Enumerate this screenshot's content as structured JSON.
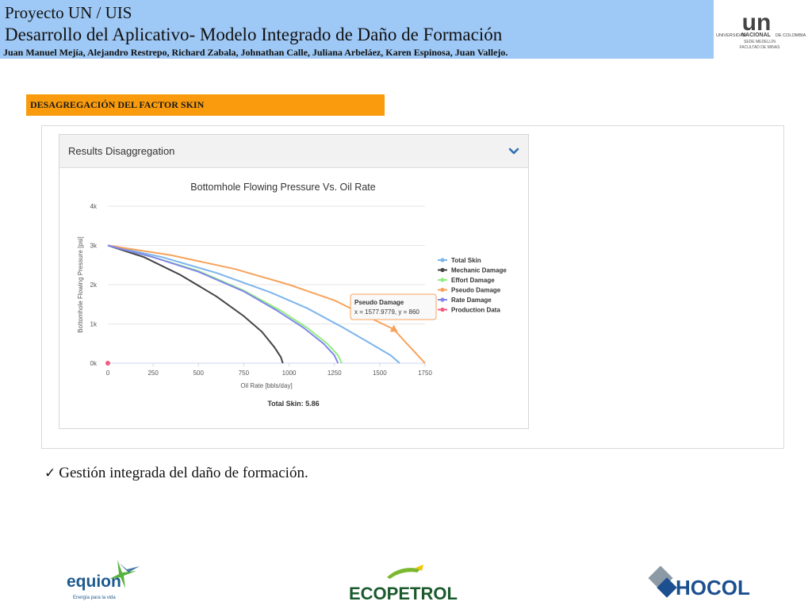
{
  "header": {
    "line1": "Proyecto UN / UIS",
    "line2": "Desarrollo  del Aplicativo- Modelo Integrado de Daño de Formación",
    "authors": "Juan Manuel Mejía,  Alejandro Restrepo, Richard Zabala, Johnathan Calle, Juliana Arbeláez, Karen Espinosa, Juan Vallejo."
  },
  "un_logo": {
    "mark": "un",
    "caption_left": "UNIVERSIDAD",
    "caption_mid": "NACIONAL",
    "caption_right": "DE COLOMBIA",
    "sub1": "SEDE MEDELLÍN",
    "sub2": "FACULTAD DE MINAS"
  },
  "section_title": "DESAGREGACIÓN DEL FACTOR SKIN",
  "panel": {
    "title": "Results Disaggregation",
    "chevron_icon": "chevron-down-icon"
  },
  "chart_data": {
    "type": "line",
    "title": "Bottomhole Flowing Pressure Vs. Oil Rate",
    "xlabel": "Oil Rate [bbls/day]",
    "ylabel": "Bottomhole Flowing Pressure [psi]",
    "xlim": [
      0,
      1750
    ],
    "ylim": [
      0,
      4000
    ],
    "xticks": [
      "0",
      "250",
      "500",
      "750",
      "1000",
      "1250",
      "1500",
      "1750"
    ],
    "yticks": [
      "0k",
      "1k",
      "2k",
      "3k",
      "4k"
    ],
    "legend_position": "right",
    "series": [
      {
        "name": "Total Skin",
        "color": "#7cb5ec",
        "points": [
          [
            0,
            3000
          ],
          [
            300,
            2700
          ],
          [
            600,
            2300
          ],
          [
            900,
            1800
          ],
          [
            1100,
            1400
          ],
          [
            1300,
            900
          ],
          [
            1450,
            500
          ],
          [
            1560,
            200
          ],
          [
            1610,
            0
          ]
        ]
      },
      {
        "name": "Mechanic Damage",
        "color": "#434348",
        "points": [
          [
            0,
            3000
          ],
          [
            200,
            2700
          ],
          [
            400,
            2250
          ],
          [
            600,
            1700
          ],
          [
            750,
            1200
          ],
          [
            850,
            800
          ],
          [
            920,
            400
          ],
          [
            955,
            150
          ],
          [
            965,
            0
          ]
        ]
      },
      {
        "name": "Effort Damage",
        "color": "#90ed7d",
        "points": [
          [
            0,
            3000
          ],
          [
            250,
            2700
          ],
          [
            500,
            2350
          ],
          [
            750,
            1850
          ],
          [
            950,
            1350
          ],
          [
            1100,
            900
          ],
          [
            1210,
            500
          ],
          [
            1270,
            200
          ],
          [
            1290,
            0
          ]
        ]
      },
      {
        "name": "Pseudo Damage",
        "color": "#f7a35c",
        "points": [
          [
            0,
            3000
          ],
          [
            350,
            2750
          ],
          [
            700,
            2400
          ],
          [
            1000,
            2000
          ],
          [
            1250,
            1600
          ],
          [
            1450,
            1150
          ],
          [
            1578,
            860
          ],
          [
            1650,
            500
          ],
          [
            1720,
            150
          ],
          [
            1750,
            0
          ]
        ]
      },
      {
        "name": "Rate Damage",
        "color": "#8085e9",
        "points": [
          [
            0,
            3000
          ],
          [
            250,
            2700
          ],
          [
            500,
            2330
          ],
          [
            750,
            1830
          ],
          [
            930,
            1350
          ],
          [
            1080,
            900
          ],
          [
            1190,
            500
          ],
          [
            1250,
            200
          ],
          [
            1270,
            0
          ]
        ]
      },
      {
        "name": "Production Data",
        "color": "#f15c80",
        "points": [
          [
            0,
            0
          ]
        ]
      }
    ],
    "tooltip": {
      "series": "Pseudo Damage",
      "text": "x = 1577.9779, y = 860",
      "x": 1577.9779,
      "y": 860
    },
    "footer": "Total Skin: 5.86"
  },
  "bullet": "Gestión integrada del daño de formación.",
  "logos": {
    "equion": {
      "name": "equion",
      "tagline": "Energía para la vida"
    },
    "ecopetrol": {
      "name": "ECOPETROL"
    },
    "hocol": {
      "name": "HOCOL"
    }
  }
}
